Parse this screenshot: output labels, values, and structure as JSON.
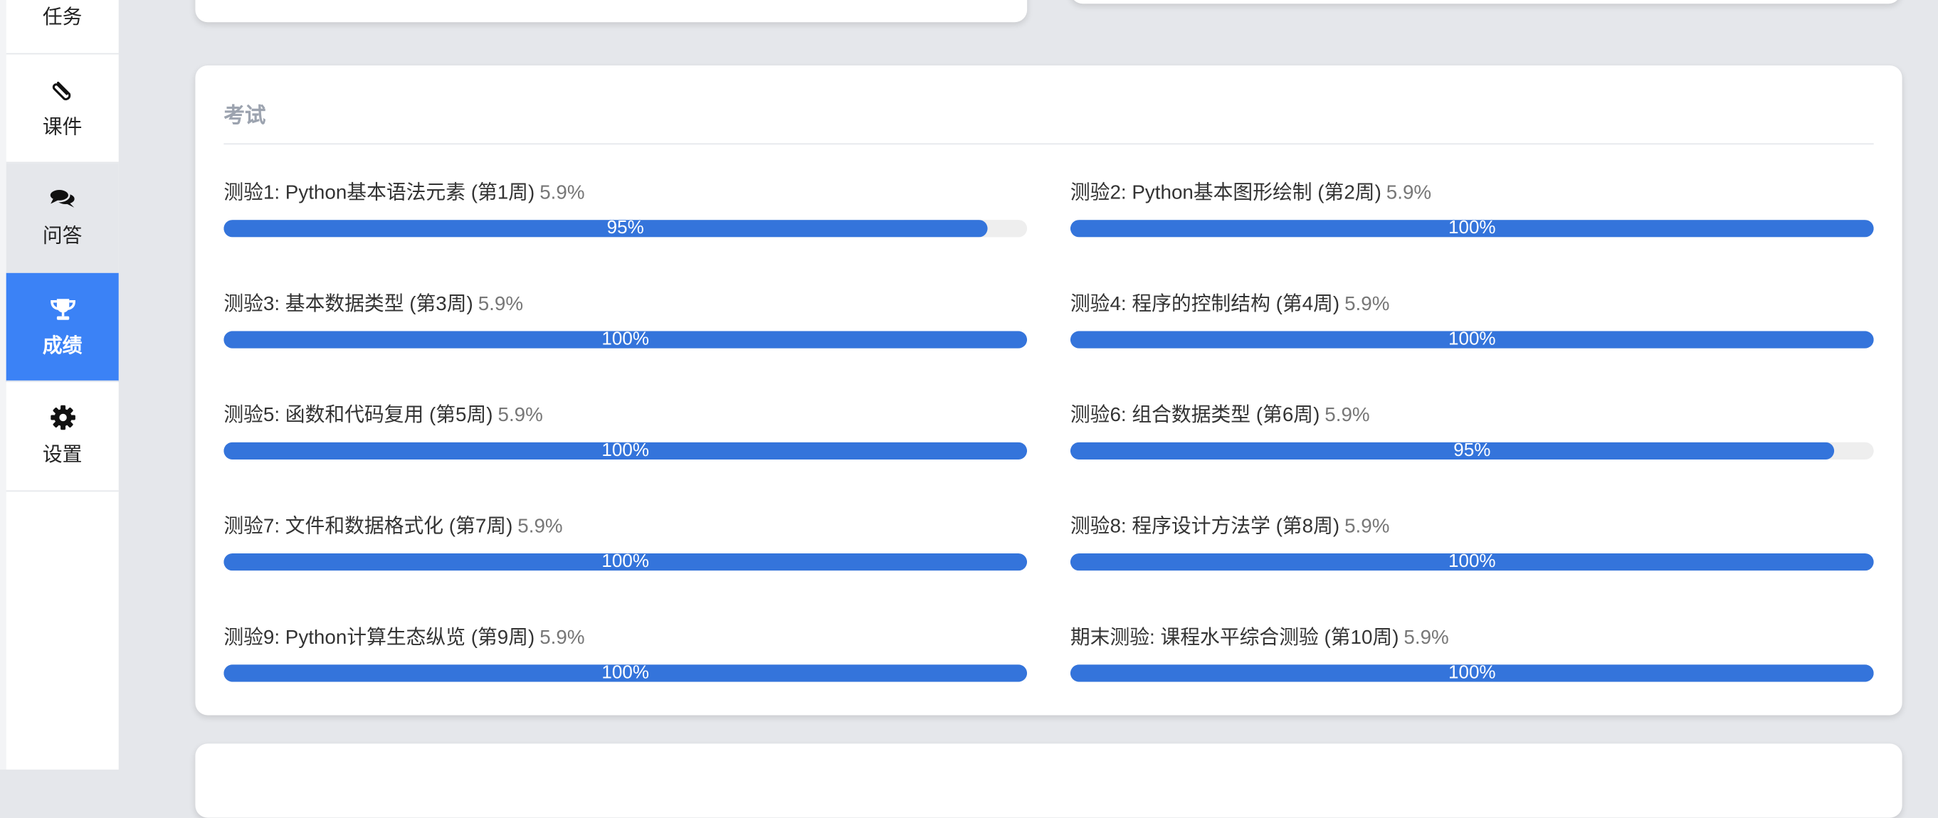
{
  "sidebar": {
    "items": [
      {
        "label": "任务",
        "icon": "tasks-icon"
      },
      {
        "label": "课件",
        "icon": "paperclip-icon"
      },
      {
        "label": "问答",
        "icon": "comments-icon"
      },
      {
        "label": "成绩",
        "icon": "trophy-icon",
        "active": true
      },
      {
        "label": "设置",
        "icon": "gear-icon"
      }
    ]
  },
  "colors": {
    "accent": "#3b82f6",
    "progress": "#3474db",
    "track": "#eeeeee"
  },
  "exam": {
    "title": "考试",
    "items": [
      {
        "name": "测验1: Python基本语法元素 (第1周)",
        "weight": "5.9%",
        "progress": 95,
        "progress_label": "95%"
      },
      {
        "name": "测验2: Python基本图形绘制 (第2周)",
        "weight": "5.9%",
        "progress": 100,
        "progress_label": "100%"
      },
      {
        "name": "测验3: 基本数据类型 (第3周)",
        "weight": "5.9%",
        "progress": 100,
        "progress_label": "100%"
      },
      {
        "name": "测验4: 程序的控制结构 (第4周)",
        "weight": "5.9%",
        "progress": 100,
        "progress_label": "100%"
      },
      {
        "name": "测验5: 函数和代码复用 (第5周)",
        "weight": "5.9%",
        "progress": 100,
        "progress_label": "100%"
      },
      {
        "name": "测验6: 组合数据类型 (第6周)",
        "weight": "5.9%",
        "progress": 95,
        "progress_label": "95%"
      },
      {
        "name": "测验7: 文件和数据格式化 (第7周)",
        "weight": "5.9%",
        "progress": 100,
        "progress_label": "100%"
      },
      {
        "name": "测验8: 程序设计方法学 (第8周)",
        "weight": "5.9%",
        "progress": 100,
        "progress_label": "100%"
      },
      {
        "name": "测验9: Python计算生态纵览 (第9周)",
        "weight": "5.9%",
        "progress": 100,
        "progress_label": "100%"
      },
      {
        "name": "期末测验: 课程水平综合测验 (第10周)",
        "weight": "5.9%",
        "progress": 100,
        "progress_label": "100%"
      }
    ]
  }
}
